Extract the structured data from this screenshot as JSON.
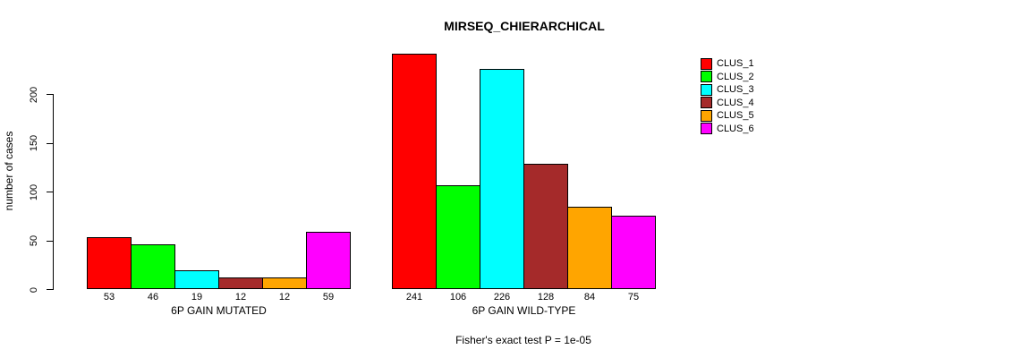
{
  "chart_data": {
    "type": "bar",
    "title": "MIRSEQ_CHIERARCHICAL",
    "ylabel": "number of cases",
    "xlabel": "",
    "footnote": "Fisher's exact test P = 1e-05",
    "yticks": [
      0,
      50,
      100,
      150,
      200
    ],
    "ylim": [
      0,
      241
    ],
    "grid": false,
    "legend_position": "right-outside",
    "bar_value_labels_shown": true,
    "categories": [
      "6P GAIN MUTATED",
      "6P GAIN WILD-TYPE"
    ],
    "series": [
      {
        "name": "CLUS_1",
        "color": "#FF0000",
        "values": [
          53,
          241
        ]
      },
      {
        "name": "CLUS_2",
        "color": "#00FF00",
        "values": [
          46,
          106
        ]
      },
      {
        "name": "CLUS_3",
        "color": "#00FFFF",
        "values": [
          19,
          226
        ]
      },
      {
        "name": "CLUS_4",
        "color": "#A52A2A",
        "values": [
          12,
          128
        ]
      },
      {
        "name": "CLUS_5",
        "color": "#FFA500",
        "values": [
          12,
          84
        ]
      },
      {
        "name": "CLUS_6",
        "color": "#FF00FF",
        "values": [
          59,
          75
        ]
      }
    ],
    "axis_color": "#000000",
    "background_color": "#FFFFFF"
  }
}
